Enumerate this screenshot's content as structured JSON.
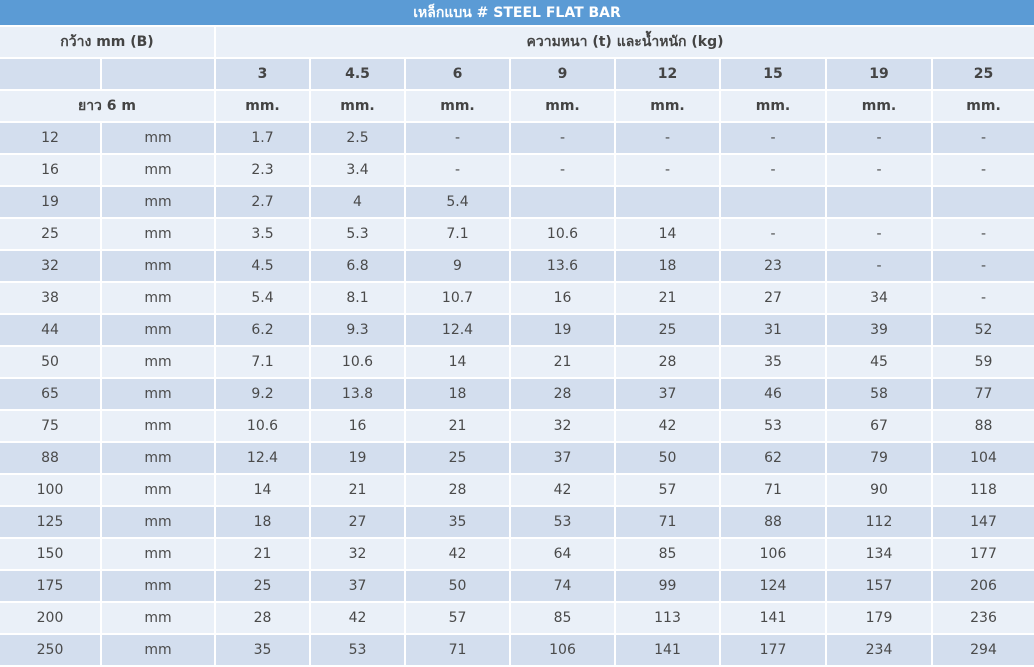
{
  "title": "เหล็กแบน # STEEL FLAT BAR",
  "header": {
    "width_label": "กว้าง mm (B)",
    "thickness_weight_label": "ความหนา (t) และน้ำหนัก (kg)",
    "length_label": "ยาว 6 m"
  },
  "thicknesses": [
    "3",
    "4.5",
    "6",
    "9",
    "12",
    "15",
    "19",
    "25"
  ],
  "unit": "mm.",
  "row_unit": "mm",
  "rows": [
    {
      "width": "12",
      "values": [
        "1.7",
        "2.5",
        "-",
        "-",
        "-",
        "-",
        "-",
        "-"
      ]
    },
    {
      "width": "16",
      "values": [
        "2.3",
        "3.4",
        "-",
        "-",
        "-",
        "-",
        "-",
        "-"
      ]
    },
    {
      "width": "19",
      "values": [
        "2.7",
        "4",
        "5.4",
        "",
        "",
        "",
        "",
        ""
      ]
    },
    {
      "width": "25",
      "values": [
        "3.5",
        "5.3",
        "7.1",
        "10.6",
        "14",
        "-",
        "-",
        "-"
      ]
    },
    {
      "width": "32",
      "values": [
        "4.5",
        "6.8",
        "9",
        "13.6",
        "18",
        "23",
        "-",
        "-"
      ]
    },
    {
      "width": "38",
      "values": [
        "5.4",
        "8.1",
        "10.7",
        "16",
        "21",
        "27",
        "34",
        "-"
      ]
    },
    {
      "width": "44",
      "values": [
        "6.2",
        "9.3",
        "12.4",
        "19",
        "25",
        "31",
        "39",
        "52"
      ]
    },
    {
      "width": "50",
      "values": [
        "7.1",
        "10.6",
        "14",
        "21",
        "28",
        "35",
        "45",
        "59"
      ]
    },
    {
      "width": "65",
      "values": [
        "9.2",
        "13.8",
        "18",
        "28",
        "37",
        "46",
        "58",
        "77"
      ]
    },
    {
      "width": "75",
      "values": [
        "10.6",
        "16",
        "21",
        "32",
        "42",
        "53",
        "67",
        "88"
      ]
    },
    {
      "width": "88",
      "values": [
        "12.4",
        "19",
        "25",
        "37",
        "50",
        "62",
        "79",
        "104"
      ]
    },
    {
      "width": "100",
      "values": [
        "14",
        "21",
        "28",
        "42",
        "57",
        "71",
        "90",
        "118"
      ]
    },
    {
      "width": "125",
      "values": [
        "18",
        "27",
        "35",
        "53",
        "71",
        "88",
        "112",
        "147"
      ]
    },
    {
      "width": "150",
      "values": [
        "21",
        "32",
        "42",
        "64",
        "85",
        "106",
        "134",
        "177"
      ]
    },
    {
      "width": "175",
      "values": [
        "25",
        "37",
        "50",
        "74",
        "99",
        "124",
        "157",
        "206"
      ]
    },
    {
      "width": "200",
      "values": [
        "28",
        "42",
        "57",
        "85",
        "113",
        "141",
        "179",
        "236"
      ]
    },
    {
      "width": "250",
      "values": [
        "35",
        "53",
        "71",
        "106",
        "141",
        "177",
        "234",
        "294"
      ]
    }
  ]
}
